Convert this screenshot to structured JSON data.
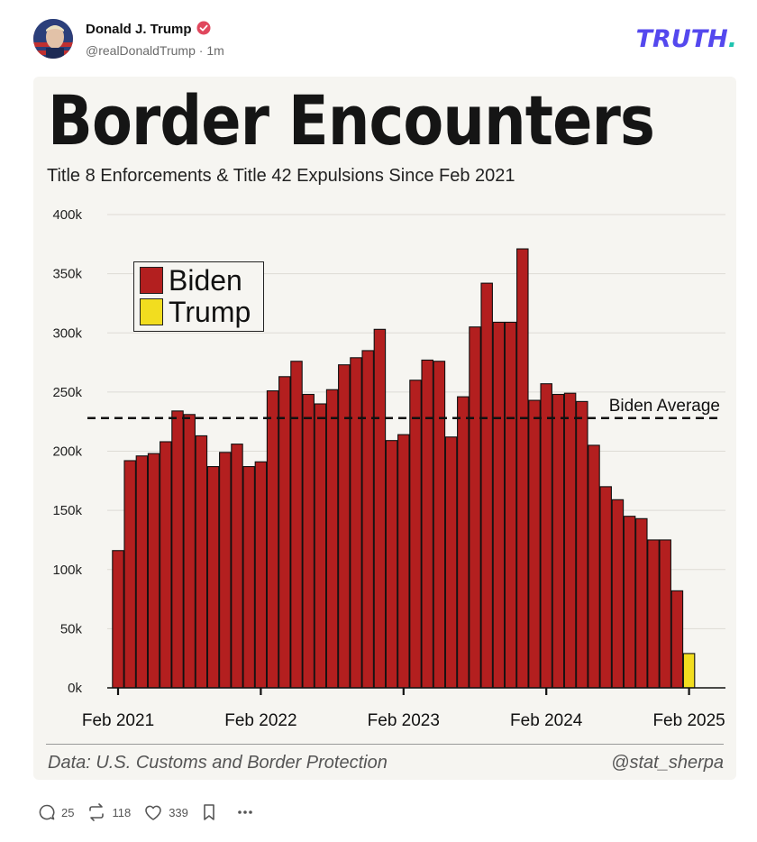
{
  "post": {
    "author_name": "Donald J. Trump",
    "handle": "@realDonaldTrump",
    "time": "1m",
    "brand": "TRUTH",
    "brand_dot": ".",
    "colors": {
      "brand": "#5448ee",
      "brand_dot": "#20c4b0",
      "verified": "#e0475d"
    }
  },
  "chart_data": {
    "type": "bar",
    "title": "Border Encounters",
    "subtitle": "Title 8 Enforcements & Title 42 Expulsions Since Feb 2021",
    "ylabel": "",
    "xlabel": "",
    "ylim": [
      0,
      400000
    ],
    "yticks": [
      "0k",
      "50k",
      "100k",
      "150k",
      "200k",
      "250k",
      "300k",
      "350k",
      "400k"
    ],
    "xticks": [
      "Feb 2021",
      "Feb 2022",
      "Feb 2023",
      "Feb 2024",
      "Feb 2025"
    ],
    "xtick_month_index": [
      0,
      12,
      24,
      36,
      48
    ],
    "categories_start": "Feb 2021",
    "series": [
      {
        "name": "Biden",
        "color": "#b31f1f",
        "start_index": 0,
        "values": [
          116000,
          192000,
          196000,
          198000,
          208000,
          234000,
          231000,
          213000,
          187000,
          199000,
          206000,
          187000,
          191000,
          251000,
          263000,
          276000,
          248000,
          240000,
          252000,
          273000,
          279000,
          285000,
          303000,
          209000,
          214000,
          260000,
          277000,
          276000,
          212000,
          246000,
          305000,
          342000,
          309000,
          309000,
          371000,
          243000,
          257000,
          248000,
          249000,
          242000,
          205000,
          170000,
          159000,
          145000,
          143000,
          125000,
          125000,
          82000
        ]
      },
      {
        "name": "Trump",
        "color": "#f2dd1f",
        "start_index": 48,
        "values": [
          29000
        ]
      }
    ],
    "reference_line": {
      "label": "Biden Average",
      "value": 228000,
      "style": "dashed"
    },
    "legend": [
      "Biden",
      "Trump"
    ],
    "legend_position": "top-left",
    "source": "Data: U.S. Customs and Border Protection",
    "credit": "@stat_sherpa"
  },
  "actions": {
    "replies": "25",
    "reposts": "118",
    "likes": "339"
  }
}
